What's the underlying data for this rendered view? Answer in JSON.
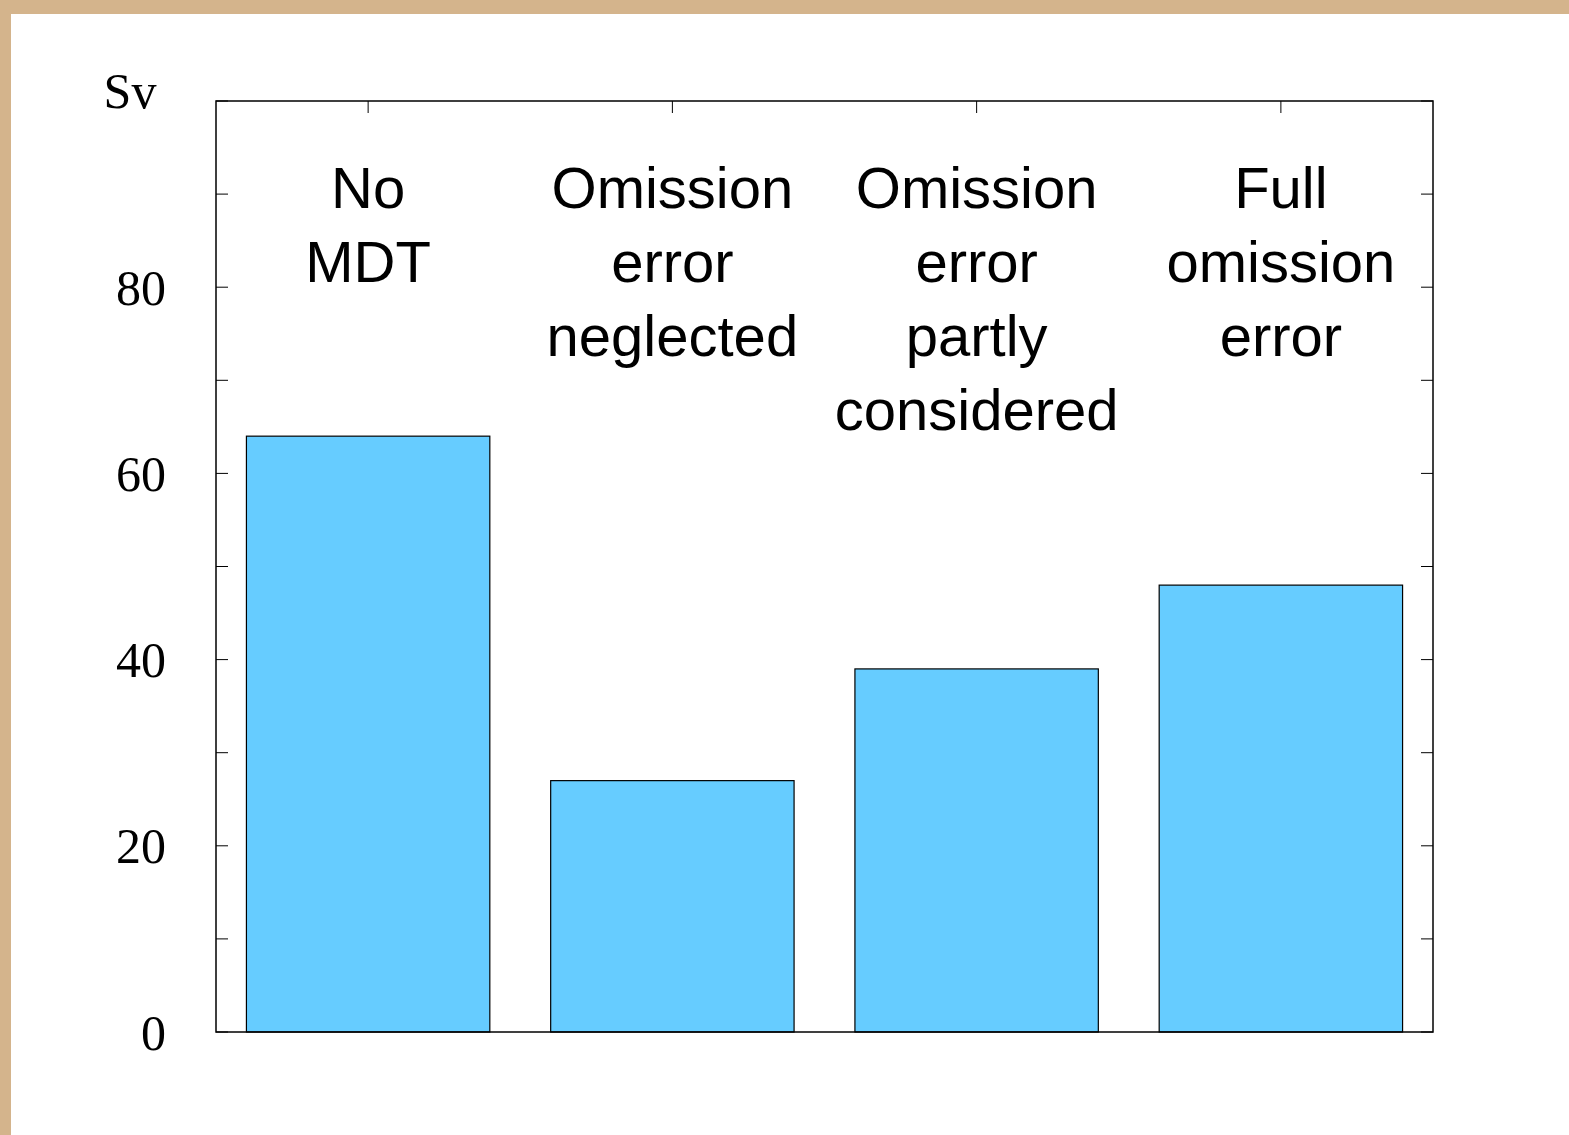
{
  "chart_data": {
    "type": "bar",
    "ylabel": "Sv",
    "categories": [
      "No MDT",
      "Omission error neglected",
      "Omission error partly considered",
      "Full omission error"
    ],
    "values": [
      64,
      27,
      39,
      48
    ],
    "color": "#66ccff",
    "ylim": [
      0,
      100
    ],
    "yticks": [
      0,
      {
        "value": 10,
        "label": null
      },
      20,
      {
        "value": 30,
        "label": null
      },
      40,
      {
        "value": 50,
        "label": null
      },
      60,
      {
        "value": 70,
        "label": null
      },
      80,
      {
        "value": 90,
        "label": null
      },
      {
        "value": 100,
        "label": null
      }
    ],
    "grid": false
  }
}
